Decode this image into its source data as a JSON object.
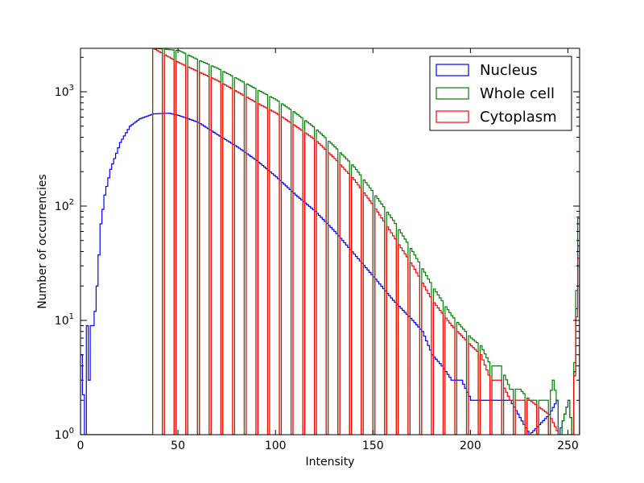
{
  "chart_data": {
    "type": "histogram",
    "xlabel": "Intensity",
    "ylabel": "Number of occurrencies",
    "xlim": [
      0,
      256
    ],
    "ylim": [
      1,
      2400
    ],
    "yscale": "log",
    "x_ticks": [
      "0",
      "50",
      "100",
      "150",
      "200",
      "250"
    ],
    "x_tick_values": [
      0,
      50,
      100,
      150,
      200,
      250
    ],
    "y_ticks": [
      {
        "value": 1,
        "base": "10",
        "exp": "0"
      },
      {
        "value": 10,
        "base": "10",
        "exp": "1"
      },
      {
        "value": 100,
        "base": "10",
        "exp": "2"
      },
      {
        "value": 1000,
        "base": "10",
        "exp": "3"
      }
    ],
    "legend_position": "top-right",
    "bins": {
      "start": 0,
      "width": 1,
      "count": 256
    },
    "series": [
      {
        "name": "Nucleus",
        "color": "#0000ff",
        "breakpoints": [
          [
            0,
            5
          ],
          [
            2,
            1
          ],
          [
            3,
            9
          ],
          [
            4,
            3
          ],
          [
            5,
            9
          ],
          [
            6,
            9
          ],
          [
            7,
            12
          ],
          [
            8,
            20
          ],
          [
            10,
            70
          ],
          [
            12,
            125
          ],
          [
            15,
            210
          ],
          [
            20,
            360
          ],
          [
            25,
            500
          ],
          [
            30,
            580
          ],
          [
            37,
            640
          ],
          [
            45,
            650
          ],
          [
            50,
            620
          ],
          [
            55,
            580
          ],
          [
            60,
            540
          ],
          [
            70,
            420
          ],
          [
            80,
            330
          ],
          [
            90,
            250
          ],
          [
            100,
            180
          ],
          [
            110,
            125
          ],
          [
            120,
            90
          ],
          [
            130,
            60
          ],
          [
            140,
            38
          ],
          [
            150,
            24
          ],
          [
            160,
            15
          ],
          [
            170,
            10
          ],
          [
            175,
            8
          ],
          [
            180,
            5
          ],
          [
            185,
            4
          ],
          [
            190,
            3
          ],
          [
            195,
            3
          ],
          [
            200,
            2
          ],
          [
            210,
            2
          ],
          [
            220,
            2
          ],
          [
            230,
            1
          ],
          [
            240,
            1.5
          ],
          [
            244,
            2
          ],
          [
            245,
            1
          ],
          [
            250,
            2
          ],
          [
            252,
            1
          ],
          [
            255,
            45
          ]
        ]
      },
      {
        "name": "Whole cell",
        "color": "#008000",
        "breakpoints": [
          [
            0,
            1
          ],
          [
            36,
            1
          ],
          [
            37,
            2400
          ],
          [
            50,
            2300
          ],
          [
            60,
            1900
          ],
          [
            70,
            1600
          ],
          [
            80,
            1300
          ],
          [
            90,
            1050
          ],
          [
            100,
            850
          ],
          [
            110,
            650
          ],
          [
            120,
            480
          ],
          [
            130,
            330
          ],
          [
            140,
            220
          ],
          [
            150,
            130
          ],
          [
            160,
            75
          ],
          [
            170,
            40
          ],
          [
            180,
            20
          ],
          [
            190,
            11
          ],
          [
            200,
            7
          ],
          [
            205,
            6
          ],
          [
            210,
            4
          ],
          [
            215,
            4
          ],
          [
            220,
            2.5
          ],
          [
            225,
            2.5
          ],
          [
            230,
            2
          ],
          [
            235,
            2
          ],
          [
            240,
            2
          ],
          [
            242,
            3
          ],
          [
            244,
            2
          ],
          [
            245,
            1
          ],
          [
            250,
            2
          ],
          [
            252,
            1
          ],
          [
            255,
            78
          ]
        ]
      },
      {
        "name": "Cytoplasm",
        "color": "#ff0000",
        "breakpoints": [
          [
            0,
            1
          ],
          [
            36,
            1
          ],
          [
            37,
            2400
          ],
          [
            50,
            1800
          ],
          [
            60,
            1500
          ],
          [
            70,
            1250
          ],
          [
            80,
            1000
          ],
          [
            90,
            800
          ],
          [
            100,
            650
          ],
          [
            110,
            500
          ],
          [
            120,
            380
          ],
          [
            130,
            260
          ],
          [
            140,
            170
          ],
          [
            150,
            100
          ],
          [
            160,
            55
          ],
          [
            170,
            30
          ],
          [
            180,
            15
          ],
          [
            190,
            9
          ],
          [
            200,
            6
          ],
          [
            205,
            5
          ],
          [
            210,
            3
          ],
          [
            215,
            3
          ],
          [
            220,
            2
          ],
          [
            230,
            2
          ],
          [
            240,
            1.5
          ],
          [
            245,
            1
          ],
          [
            250,
            1
          ],
          [
            252,
            1
          ],
          [
            255,
            35
          ]
        ]
      }
    ]
  }
}
